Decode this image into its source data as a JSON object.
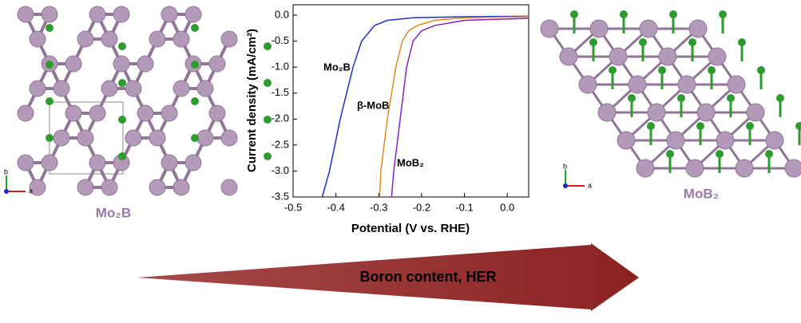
{
  "chart_data": {
    "type": "line",
    "xlabel": "Potential (V vs. RHE)",
    "ylabel": "Current density (mA/cm²)",
    "xlim": [
      -0.5,
      0.05
    ],
    "ylim": [
      -3.5,
      0.2
    ],
    "xticks": [
      -0.5,
      -0.4,
      -0.3,
      -0.2,
      -0.1,
      {
        "value": 0,
        "label": "0.0"
      }
    ],
    "yticks": [
      {
        "value": 0,
        "label": "0.0"
      },
      -0.5,
      {
        "value": -1,
        "label": "-1.0"
      },
      -1.5,
      {
        "value": -2,
        "label": "-2.0"
      },
      -2.5,
      {
        "value": -3,
        "label": "-3.0"
      },
      -3.5
    ],
    "series": [
      {
        "name": "Mo₂B",
        "color": "#1f2fc4",
        "x": [
          -0.432,
          -0.415,
          -0.39,
          -0.36,
          -0.34,
          -0.31,
          -0.28,
          -0.22,
          -0.1,
          0.05
        ],
        "values": [
          -3.5,
          -3.0,
          -2.0,
          -1.0,
          -0.5,
          -0.2,
          -0.1,
          -0.05,
          -0.03,
          -0.02
        ]
      },
      {
        "name": "β-MoB",
        "color": "#e08a1c",
        "x": [
          -0.298,
          -0.295,
          -0.28,
          -0.26,
          -0.245,
          -0.23,
          -0.21,
          -0.17,
          -0.1,
          0.05
        ],
        "values": [
          -3.5,
          -3.0,
          -2.0,
          -1.0,
          -0.5,
          -0.3,
          -0.2,
          -0.1,
          -0.05,
          -0.03
        ]
      },
      {
        "name": "MoB₂",
        "color": "#8a1fc4",
        "x": [
          -0.27,
          -0.265,
          -0.25,
          -0.235,
          -0.22,
          -0.2,
          -0.17,
          -0.1,
          0.05
        ],
        "values": [
          -3.5,
          -3.0,
          -2.0,
          -1.0,
          -0.5,
          -0.3,
          -0.2,
          -0.1,
          -0.06
        ]
      }
    ]
  },
  "left_structure": {
    "label": "Mo₂B",
    "axes": [
      "b",
      "a"
    ]
  },
  "right_structure": {
    "label": "MoB₂",
    "axes": [
      "b",
      "a"
    ]
  },
  "arrow": {
    "label": "Boron content, HER"
  }
}
